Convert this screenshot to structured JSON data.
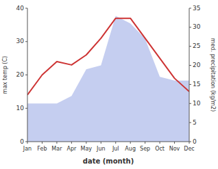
{
  "chart_data": {
    "type": "line",
    "x_label": "date (month)",
    "y_label": "max temp (C)",
    "y2_label": "med. precipitation (kg/m2)",
    "categories": [
      "Jan",
      "Feb",
      "Mar",
      "Apr",
      "May",
      "Jun",
      "Jul",
      "Aug",
      "Sep",
      "Oct",
      "Nov",
      "Dec"
    ],
    "series": [
      {
        "type": "area",
        "axis": "y2",
        "color": "#c5cef0",
        "values": [
          10,
          10,
          10,
          12,
          19,
          20,
          33,
          31,
          27,
          17,
          16,
          16
        ]
      },
      {
        "type": "line",
        "color": "#cd3333",
        "values": [
          14,
          20,
          24,
          23,
          26,
          31,
          37,
          37,
          31,
          25,
          19,
          15
        ]
      }
    ],
    "ylim": [
      0,
      40
    ],
    "yticks": [
      0,
      10,
      20,
      30,
      40
    ],
    "y2lim": [
      0,
      35
    ],
    "y2ticks": [
      0,
      5,
      10,
      15,
      20,
      25,
      30,
      35
    ],
    "grid": false
  }
}
